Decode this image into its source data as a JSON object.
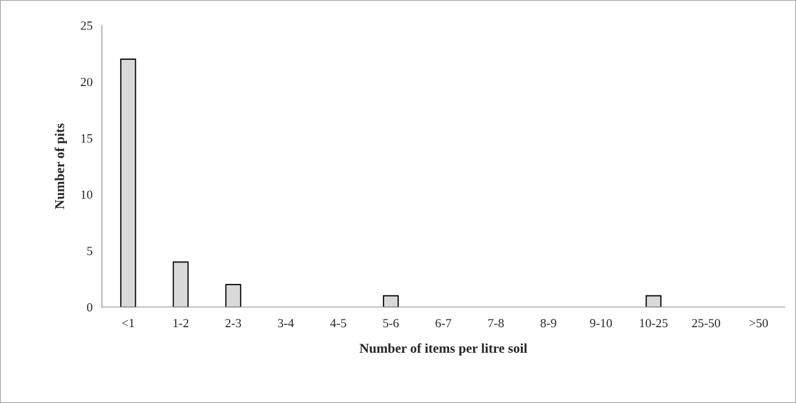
{
  "chart_data": {
    "type": "bar",
    "xlabel": "Number of items per litre soil",
    "ylabel": "Number of pits",
    "categories": [
      "<1",
      "1-2",
      "2-3",
      "3-4",
      "4-5",
      "5-6",
      "6-7",
      "7-8",
      "8-9",
      "9-10",
      "10-25",
      "25-50",
      ">50"
    ],
    "values": [
      22,
      4,
      2,
      0,
      0,
      1,
      0,
      0,
      0,
      0,
      1,
      0,
      0
    ],
    "color": "#d9d9d9",
    "ylim": [
      0,
      25
    ],
    "yticks": [
      0,
      5,
      10,
      15,
      20,
      25
    ],
    "grid": false,
    "legend": false
  }
}
